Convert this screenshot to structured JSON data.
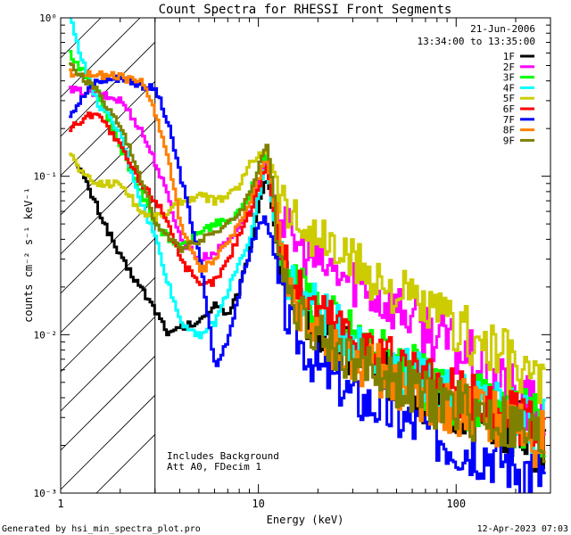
{
  "chart_data": {
    "type": "line",
    "title": "Count Spectra for RHESSI Front Segments",
    "xlabel": "Energy (keV)",
    "ylabel": "counts cm⁻² s⁻¹ keV⁻¹",
    "xscale": "log",
    "yscale": "log",
    "xlim": [
      1,
      300
    ],
    "ylim": [
      0.001,
      1
    ],
    "xticks": [
      {
        "value": 1,
        "label": "1"
      },
      {
        "value": 10,
        "label": "10"
      },
      {
        "value": 100,
        "label": "100"
      }
    ],
    "yticks": [
      {
        "value": 0.001,
        "label": "10⁻³"
      },
      {
        "value": 0.01,
        "label": "10⁻²"
      },
      {
        "value": 0.1,
        "label": "10⁻¹"
      },
      {
        "value": 1,
        "label": "10⁰"
      }
    ],
    "shaded_region": {
      "x_from": 1,
      "x_to": 3,
      "style": "diagonal hatch"
    },
    "date": "21-Jun-2006",
    "time_range": "13:34:00 to 13:35:00",
    "annotations": [
      "Includes Background",
      "Att A0, FDecim 1"
    ],
    "legend_position": "top-right",
    "series": [
      {
        "name": "1F",
        "color": "#000000",
        "points": [
          [
            1.2,
            0.12
          ],
          [
            1.5,
            0.065
          ],
          [
            2.0,
            0.03
          ],
          [
            2.5,
            0.02
          ],
          [
            3.0,
            0.014
          ],
          [
            3.5,
            0.01
          ],
          [
            4.0,
            0.011
          ],
          [
            5.0,
            0.012
          ],
          [
            6.0,
            0.016
          ],
          [
            7.0,
            0.013
          ],
          [
            8.0,
            0.02
          ],
          [
            9.0,
            0.035
          ],
          [
            10.0,
            0.07
          ],
          [
            10.8,
            0.1
          ],
          [
            11.5,
            0.07
          ],
          [
            12.5,
            0.03
          ],
          [
            14,
            0.02
          ],
          [
            16,
            0.015
          ],
          [
            20,
            0.011
          ],
          [
            25,
            0.009
          ],
          [
            30,
            0.007
          ],
          [
            40,
            0.006
          ],
          [
            50,
            0.005
          ],
          [
            70,
            0.004
          ],
          [
            100,
            0.0035
          ],
          [
            150,
            0.003
          ],
          [
            200,
            0.0025
          ],
          [
            280,
            0.002
          ]
        ]
      },
      {
        "name": "2F",
        "color": "#ff00ff",
        "points": [
          [
            1.1,
            0.35
          ],
          [
            1.5,
            0.33
          ],
          [
            2.0,
            0.3
          ],
          [
            2.5,
            0.2
          ],
          [
            3.0,
            0.12
          ],
          [
            3.5,
            0.07
          ],
          [
            4.0,
            0.04
          ],
          [
            5.0,
            0.03
          ],
          [
            6.0,
            0.033
          ],
          [
            7.0,
            0.04
          ],
          [
            8.0,
            0.05
          ],
          [
            9.0,
            0.06
          ],
          [
            10.0,
            0.09
          ],
          [
            10.8,
            0.12
          ],
          [
            11.5,
            0.09
          ],
          [
            12.5,
            0.06
          ],
          [
            14,
            0.045
          ],
          [
            16,
            0.035
          ],
          [
            20,
            0.028
          ],
          [
            25,
            0.024
          ],
          [
            30,
            0.022
          ],
          [
            40,
            0.017
          ],
          [
            50,
            0.015
          ],
          [
            70,
            0.011
          ],
          [
            100,
            0.008
          ],
          [
            150,
            0.0055
          ],
          [
            200,
            0.004
          ],
          [
            280,
            0.003
          ]
        ]
      },
      {
        "name": "3F",
        "color": "#00ff00",
        "points": [
          [
            1.1,
            0.6
          ],
          [
            1.5,
            0.35
          ],
          [
            2.0,
            0.15
          ],
          [
            2.5,
            0.08
          ],
          [
            3.0,
            0.05
          ],
          [
            3.5,
            0.04
          ],
          [
            4.0,
            0.035
          ],
          [
            5.0,
            0.045
          ],
          [
            6.0,
            0.05
          ],
          [
            7.0,
            0.052
          ],
          [
            8.0,
            0.06
          ],
          [
            9.0,
            0.08
          ],
          [
            10.0,
            0.11
          ],
          [
            10.8,
            0.14
          ],
          [
            11.5,
            0.08
          ],
          [
            12.5,
            0.04
          ],
          [
            14,
            0.025
          ],
          [
            16,
            0.02
          ],
          [
            20,
            0.015
          ],
          [
            25,
            0.012
          ],
          [
            30,
            0.01
          ],
          [
            40,
            0.008
          ],
          [
            50,
            0.007
          ],
          [
            70,
            0.005
          ],
          [
            100,
            0.004
          ],
          [
            150,
            0.0035
          ],
          [
            200,
            0.003
          ],
          [
            280,
            0.0025
          ]
        ]
      },
      {
        "name": "4F",
        "color": "#00ffff",
        "points": [
          [
            1.1,
            1.0
          ],
          [
            1.3,
            0.5
          ],
          [
            1.5,
            0.3
          ],
          [
            2.0,
            0.18
          ],
          [
            2.5,
            0.07
          ],
          [
            3.0,
            0.04
          ],
          [
            3.5,
            0.02
          ],
          [
            4.0,
            0.012
          ],
          [
            5.0,
            0.01
          ],
          [
            6.0,
            0.012
          ],
          [
            7.0,
            0.02
          ],
          [
            8.0,
            0.03
          ],
          [
            9.0,
            0.04
          ],
          [
            10.0,
            0.08
          ],
          [
            10.8,
            0.12
          ],
          [
            11.5,
            0.07
          ],
          [
            12.5,
            0.035
          ],
          [
            14,
            0.022
          ],
          [
            16,
            0.018
          ],
          [
            20,
            0.014
          ],
          [
            25,
            0.011
          ],
          [
            30,
            0.009
          ],
          [
            40,
            0.007
          ],
          [
            50,
            0.006
          ],
          [
            70,
            0.005
          ],
          [
            100,
            0.004
          ],
          [
            150,
            0.0035
          ],
          [
            200,
            0.003
          ],
          [
            280,
            0.0025
          ]
        ]
      },
      {
        "name": "5F",
        "color": "#cccc00",
        "points": [
          [
            1.1,
            0.14
          ],
          [
            1.3,
            0.1
          ],
          [
            1.5,
            0.09
          ],
          [
            2.0,
            0.09
          ],
          [
            2.5,
            0.06
          ],
          [
            3.0,
            0.055
          ],
          [
            3.5,
            0.06
          ],
          [
            4.0,
            0.07
          ],
          [
            5.0,
            0.075
          ],
          [
            6.0,
            0.07
          ],
          [
            7.0,
            0.075
          ],
          [
            8.0,
            0.09
          ],
          [
            9.0,
            0.12
          ],
          [
            10.0,
            0.14
          ],
          [
            10.8,
            0.15
          ],
          [
            11.5,
            0.12
          ],
          [
            12.5,
            0.08
          ],
          [
            14,
            0.06
          ],
          [
            16,
            0.05
          ],
          [
            20,
            0.04
          ],
          [
            25,
            0.033
          ],
          [
            30,
            0.028
          ],
          [
            40,
            0.022
          ],
          [
            50,
            0.018
          ],
          [
            70,
            0.014
          ],
          [
            100,
            0.011
          ],
          [
            150,
            0.008
          ],
          [
            200,
            0.006
          ],
          [
            280,
            0.0045
          ]
        ]
      },
      {
        "name": "6F",
        "color": "#ff0000",
        "points": [
          [
            1.1,
            0.2
          ],
          [
            1.5,
            0.26
          ],
          [
            2.0,
            0.15
          ],
          [
            2.5,
            0.09
          ],
          [
            3.0,
            0.07
          ],
          [
            3.5,
            0.05
          ],
          [
            4.0,
            0.03
          ],
          [
            5.0,
            0.02
          ],
          [
            6.0,
            0.022
          ],
          [
            7.0,
            0.03
          ],
          [
            8.0,
            0.045
          ],
          [
            9.0,
            0.06
          ],
          [
            10.0,
            0.09
          ],
          [
            10.8,
            0.12
          ],
          [
            11.5,
            0.08
          ],
          [
            12.5,
            0.04
          ],
          [
            14,
            0.025
          ],
          [
            16,
            0.019
          ],
          [
            20,
            0.015
          ],
          [
            25,
            0.012
          ],
          [
            30,
            0.01
          ],
          [
            40,
            0.008
          ],
          [
            50,
            0.006
          ],
          [
            70,
            0.005
          ],
          [
            100,
            0.004
          ],
          [
            150,
            0.0035
          ],
          [
            200,
            0.003
          ],
          [
            280,
            0.0025
          ]
        ]
      },
      {
        "name": "7F",
        "color": "#0000ff",
        "points": [
          [
            1.1,
            0.25
          ],
          [
            1.5,
            0.4
          ],
          [
            2.0,
            0.42
          ],
          [
            2.5,
            0.38
          ],
          [
            3.0,
            0.35
          ],
          [
            3.5,
            0.2
          ],
          [
            4.0,
            0.1
          ],
          [
            5.0,
            0.03
          ],
          [
            6.0,
            0.006
          ],
          [
            7.0,
            0.01
          ],
          [
            8.0,
            0.02
          ],
          [
            9.0,
            0.035
          ],
          [
            10.0,
            0.05
          ],
          [
            10.8,
            0.055
          ],
          [
            11.5,
            0.04
          ],
          [
            12.5,
            0.02
          ],
          [
            14,
            0.012
          ],
          [
            16,
            0.009
          ],
          [
            20,
            0.006
          ],
          [
            25,
            0.005
          ],
          [
            30,
            0.004
          ],
          [
            40,
            0.0035
          ],
          [
            50,
            0.003
          ],
          [
            70,
            0.0025
          ],
          [
            100,
            0.002
          ],
          [
            150,
            0.0018
          ],
          [
            200,
            0.0015
          ],
          [
            280,
            0.0013
          ]
        ]
      },
      {
        "name": "8F",
        "color": "#ff8000",
        "points": [
          [
            1.1,
            0.45
          ],
          [
            1.5,
            0.44
          ],
          [
            2.0,
            0.42
          ],
          [
            2.5,
            0.4
          ],
          [
            3.0,
            0.25
          ],
          [
            3.5,
            0.12
          ],
          [
            4.0,
            0.05
          ],
          [
            5.0,
            0.025
          ],
          [
            6.0,
            0.03
          ],
          [
            7.0,
            0.04
          ],
          [
            8.0,
            0.05
          ],
          [
            9.0,
            0.07
          ],
          [
            10.0,
            0.1
          ],
          [
            10.8,
            0.13
          ],
          [
            11.5,
            0.09
          ],
          [
            12.5,
            0.04
          ],
          [
            14,
            0.02
          ],
          [
            16,
            0.014
          ],
          [
            20,
            0.01
          ],
          [
            25,
            0.008
          ],
          [
            30,
            0.007
          ],
          [
            40,
            0.006
          ],
          [
            50,
            0.005
          ],
          [
            70,
            0.004
          ],
          [
            100,
            0.0035
          ],
          [
            150,
            0.003
          ],
          [
            200,
            0.0025
          ],
          [
            280,
            0.002
          ]
        ]
      },
      {
        "name": "9F",
        "color": "#808000",
        "points": [
          [
            1.1,
            0.5
          ],
          [
            1.5,
            0.35
          ],
          [
            2.0,
            0.2
          ],
          [
            2.5,
            0.1
          ],
          [
            3.0,
            0.05
          ],
          [
            3.5,
            0.04
          ],
          [
            4.0,
            0.035
          ],
          [
            5.0,
            0.04
          ],
          [
            6.0,
            0.045
          ],
          [
            7.0,
            0.05
          ],
          [
            8.0,
            0.06
          ],
          [
            9.0,
            0.08
          ],
          [
            10.0,
            0.12
          ],
          [
            10.8,
            0.16
          ],
          [
            11.5,
            0.1
          ],
          [
            12.5,
            0.04
          ],
          [
            14,
            0.02
          ],
          [
            16,
            0.014
          ],
          [
            20,
            0.01
          ],
          [
            25,
            0.008
          ],
          [
            30,
            0.007
          ],
          [
            40,
            0.006
          ],
          [
            50,
            0.005
          ],
          [
            70,
            0.004
          ],
          [
            100,
            0.0035
          ],
          [
            150,
            0.003
          ],
          [
            200,
            0.0025
          ],
          [
            280,
            0.002
          ]
        ]
      }
    ]
  },
  "footer": {
    "generated_by": "Generated by hsi_min_spectra_plot.pro",
    "timestamp": "12-Apr-2023 07:03"
  }
}
